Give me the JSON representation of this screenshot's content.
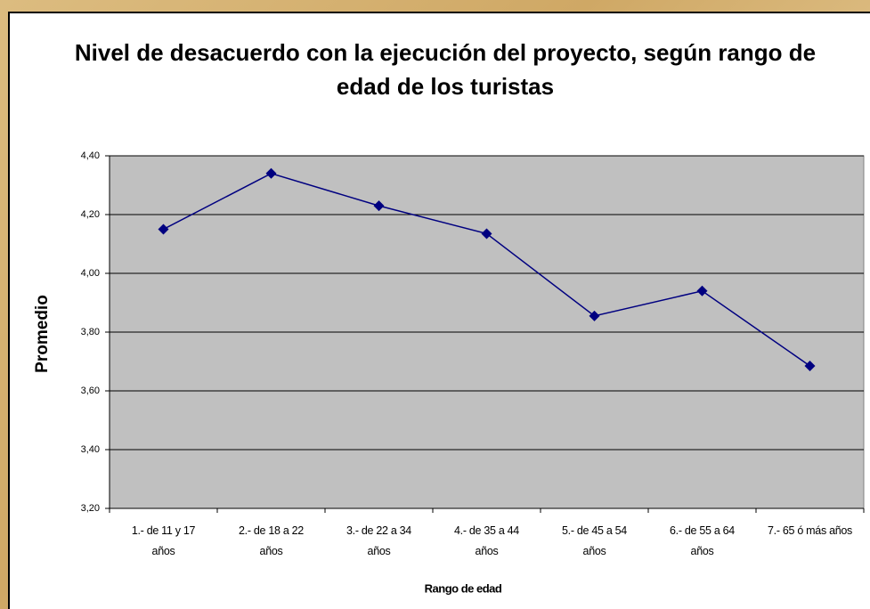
{
  "chart_data": {
    "type": "line",
    "title": "Nivel de desacuerdo con la ejecución del proyecto, según rango de edad de los turistas",
    "x_label": "Rango de edad",
    "y_label": "Promedio",
    "categories": [
      "1.- de 11 y 17 años",
      "2.- de 18 a 22 años",
      "3.- de 22 a 34 años",
      "4.- de 35 a 44 años",
      "5.- de 45 a 54 años",
      "6.- de 55 a 64 años",
      "7.- 65 ó más años"
    ],
    "series": [
      {
        "name": "Promedio",
        "color": "#000080",
        "values": [
          4.15,
          4.34,
          4.23,
          4.135,
          3.855,
          3.94,
          3.685
        ]
      }
    ],
    "ylim": [
      3.2,
      4.4
    ],
    "yticks": [
      {
        "value": 3.2,
        "label": "3,20"
      },
      {
        "value": 3.4,
        "label": "3,40"
      },
      {
        "value": 3.6,
        "label": "3,60"
      },
      {
        "value": 3.8,
        "label": "3,80"
      },
      {
        "value": 4.0,
        "label": "4,00"
      },
      {
        "value": 4.2,
        "label": "4,20"
      },
      {
        "value": 4.4,
        "label": "4,40"
      }
    ],
    "grid": true
  }
}
